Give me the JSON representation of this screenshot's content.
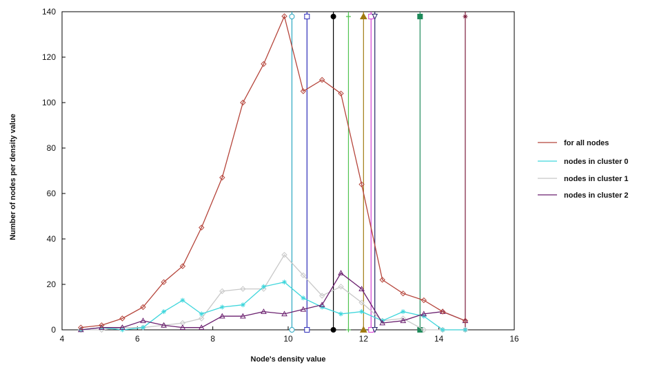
{
  "chart_data": {
    "type": "line",
    "xlabel": "Node's density value",
    "ylabel": "Number of nodes per density value",
    "xlim": [
      4,
      16
    ],
    "ylim": [
      0,
      140
    ],
    "xticks": [
      4,
      6,
      8,
      10,
      12,
      14,
      16
    ],
    "yticks": [
      0,
      20,
      40,
      60,
      80,
      100,
      120,
      140
    ],
    "grid": false,
    "legend_position": "right",
    "series": [
      {
        "name": "for all nodes",
        "color": "#b5443a",
        "marker": "diamond",
        "x": [
          4.5,
          5.05,
          5.6,
          6.15,
          6.7,
          7.2,
          7.7,
          8.25,
          8.8,
          9.35,
          9.9,
          10.4,
          10.9,
          11.4,
          11.95,
          12.5,
          13.05,
          13.6,
          14.1,
          14.7
        ],
        "y": [
          1,
          2,
          5,
          10,
          21,
          28,
          45,
          67,
          100,
          117,
          138,
          105,
          110,
          104,
          64,
          22,
          16,
          13,
          8,
          4
        ]
      },
      {
        "name": "nodes in cluster 0",
        "color": "#3fd6dc",
        "marker": "asterisk",
        "x": [
          4.5,
          5.05,
          5.6,
          6.15,
          6.7,
          7.2,
          7.7,
          8.25,
          8.8,
          9.35,
          9.9,
          10.4,
          10.9,
          11.4,
          11.95,
          12.5,
          13.05,
          13.6,
          14.1,
          14.7
        ],
        "y": [
          0,
          1,
          0,
          1,
          8,
          13,
          7,
          10,
          11,
          19,
          21,
          14,
          10,
          7,
          8,
          4,
          8,
          6,
          0,
          0
        ]
      },
      {
        "name": "nodes in cluster  1",
        "color": "#c8c8c8",
        "marker": "diamond",
        "x": [
          4.5,
          5.05,
          5.6,
          6.15,
          6.7,
          7.2,
          7.7,
          8.25,
          8.8,
          9.35,
          9.9,
          10.4,
          10.9,
          11.4,
          11.95,
          12.5,
          13.05,
          13.6,
          14.1,
          14.7
        ],
        "y": [
          0,
          0,
          1,
          1,
          2,
          3,
          5,
          17,
          18,
          18,
          33,
          24,
          15,
          19,
          12,
          4,
          5,
          0,
          0,
          0
        ]
      },
      {
        "name": "nodes in cluster 2",
        "color": "#6a1f6e",
        "marker": "triangle",
        "x": [
          4.5,
          5.05,
          5.6,
          6.15,
          6.7,
          7.2,
          7.7,
          8.25,
          8.8,
          9.35,
          9.9,
          10.4,
          10.9,
          11.4,
          11.95,
          12.5,
          13.05,
          13.6,
          14.1,
          14.7
        ],
        "y": [
          0,
          1,
          1,
          4,
          2,
          1,
          1,
          6,
          6,
          8,
          7,
          9,
          11,
          25,
          18,
          3,
          4,
          7,
          8,
          4
        ]
      }
    ],
    "vertical_lines": [
      {
        "x": 10.1,
        "color": "#2aa6c0",
        "marker": "circle-open"
      },
      {
        "x": 10.5,
        "color": "#2a2ab8",
        "marker": "square-open"
      },
      {
        "x": 11.2,
        "color": "#000000",
        "marker": "circle-filled"
      },
      {
        "x": 11.6,
        "color": "#4ec24e",
        "marker": "plus"
      },
      {
        "x": 12.0,
        "color": "#a07a10",
        "marker": "triangle-filled"
      },
      {
        "x": 12.2,
        "color": "#d23cd2",
        "marker": "square-open"
      },
      {
        "x": 12.3,
        "color": "#222266",
        "marker": "triangle-down-open"
      },
      {
        "x": 13.5,
        "color": "#1e8a5a",
        "marker": "square-filled"
      },
      {
        "x": 14.7,
        "color": "#7a1a3a",
        "marker": "asterisk"
      }
    ]
  }
}
